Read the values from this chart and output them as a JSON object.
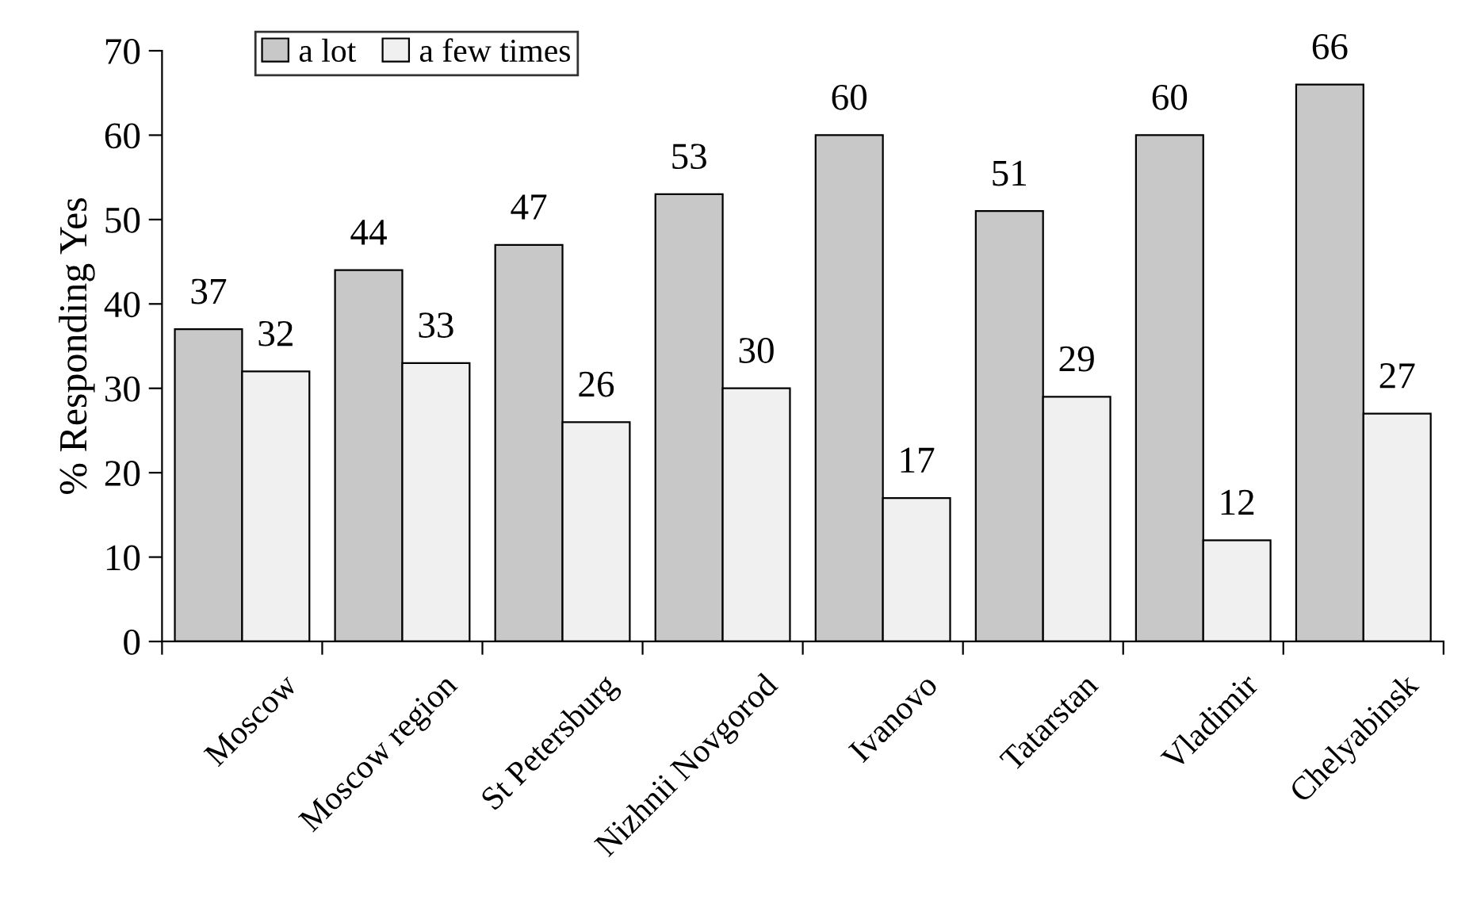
{
  "chart_data": {
    "type": "bar",
    "ylabel": "% Responding Yes",
    "categories": [
      "Moscow",
      "Moscow region",
      "St Petersburg",
      "Nizhnii Novgorod",
      "Ivanovo",
      "Tatarstan",
      "Vladimir",
      "Chelyabinsk"
    ],
    "series": [
      {
        "name": "a lot",
        "color": "#c8c8c8",
        "values": [
          37,
          44,
          47,
          53,
          60,
          51,
          60,
          66
        ]
      },
      {
        "name": "a few times",
        "color": "#f0f0f0",
        "values": [
          32,
          33,
          26,
          30,
          17,
          29,
          12,
          27
        ]
      }
    ],
    "ylim": [
      0,
      70
    ],
    "yticks": [
      0,
      10,
      20,
      30,
      40,
      50,
      60,
      70
    ],
    "grid": false,
    "legend": "top left",
    "data_labels": true
  }
}
